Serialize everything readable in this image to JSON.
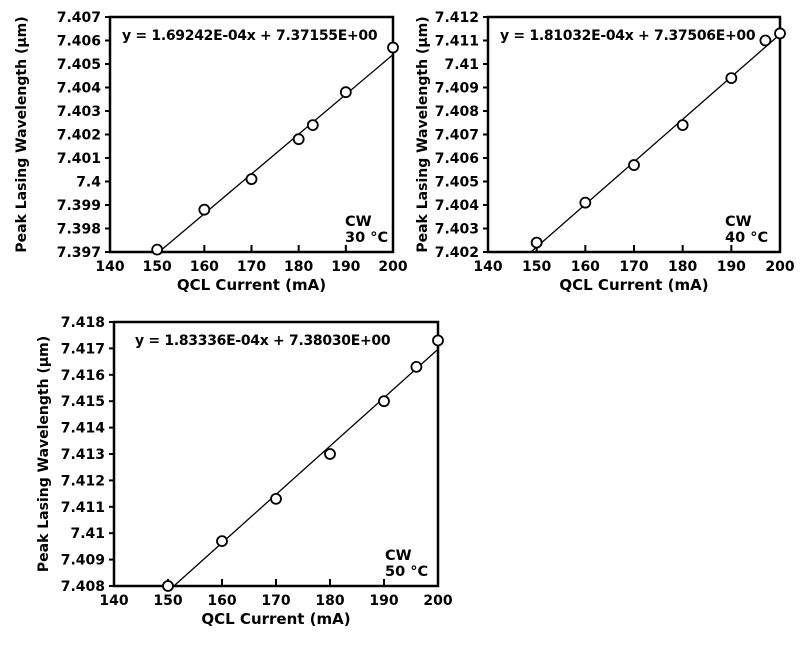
{
  "figure": {
    "description": "QCL peak lasing wavelength tuning vs drive current at three heatsink temperatures",
    "colors": {
      "ink": "#000000",
      "background": "#ffffff",
      "marker_fill": "#ffffff"
    }
  },
  "chart_data": [
    {
      "id": "cw-30c",
      "type": "scatter",
      "equation": "y = 1.69242E-04x  + 7.37155E+00",
      "fit": {
        "slope": 0.000169242,
        "intercept": 7.37155
      },
      "xlabel": "QCL Current (mA)",
      "ylabel": "Peak Lasing Wavelength (µm)",
      "xlim": [
        140,
        200
      ],
      "ylim": [
        7.397,
        7.407
      ],
      "xticks": [
        "140",
        "150",
        "160",
        "170",
        "180",
        "190",
        "200"
      ],
      "yticks": [
        "7.397",
        "7.398",
        "7.399",
        "7.4",
        "7.401",
        "7.402",
        "7.403",
        "7.404",
        "7.405",
        "7.406",
        "7.407"
      ],
      "points": [
        [
          150,
          7.3971
        ],
        [
          160,
          7.3988
        ],
        [
          170,
          7.4001
        ],
        [
          180,
          7.4018
        ],
        [
          183,
          7.4024
        ],
        [
          190,
          7.4038
        ],
        [
          200,
          7.4057
        ]
      ],
      "annotation": [
        "CW",
        "30 °C"
      ],
      "mode": "CW",
      "temperature_c": 30,
      "grid": false,
      "marker": "open-circle"
    },
    {
      "id": "cw-40c",
      "type": "scatter",
      "equation": "y = 1.81032E-04x  + 7.37506E+00",
      "fit": {
        "slope": 0.000181032,
        "intercept": 7.37506
      },
      "xlabel": "QCL Current (mA)",
      "ylabel": "Peak Lasing Wavelength (µm)",
      "xlim": [
        140,
        200
      ],
      "ylim": [
        7.402,
        7.412
      ],
      "xticks": [
        "140",
        "150",
        "160",
        "170",
        "180",
        "190",
        "200"
      ],
      "yticks": [
        "7.402",
        "7.403",
        "7.404",
        "7.405",
        "7.406",
        "7.407",
        "7.408",
        "7.409",
        "7.41",
        "7.411",
        "7.412"
      ],
      "points": [
        [
          150,
          7.4024
        ],
        [
          160,
          7.4041
        ],
        [
          170,
          7.4057
        ],
        [
          180,
          7.4074
        ],
        [
          190,
          7.4094
        ],
        [
          197,
          7.411
        ],
        [
          200,
          7.4113
        ]
      ],
      "annotation": [
        "CW",
        "40 °C"
      ],
      "mode": "CW",
      "temperature_c": 40,
      "grid": false,
      "marker": "open-circle"
    },
    {
      "id": "cw-50c",
      "type": "scatter",
      "equation": "y = 1.83336E-04x  + 7.38030E+00",
      "fit": {
        "slope": 0.000183336,
        "intercept": 7.3803
      },
      "xlabel": "QCL Current (mA)",
      "ylabel": "Peak Lasing Wavelength (µm)",
      "xlim": [
        140,
        200
      ],
      "ylim": [
        7.408,
        7.418
      ],
      "xticks": [
        "140",
        "150",
        "160",
        "170",
        "180",
        "190",
        "200"
      ],
      "yticks": [
        "7.408",
        "7.409",
        "7.41",
        "7.411",
        "7.412",
        "7.413",
        "7.414",
        "7.415",
        "7.416",
        "7.417",
        "7.418"
      ],
      "points": [
        [
          150,
          7.408
        ],
        [
          160,
          7.4097
        ],
        [
          170,
          7.4113
        ],
        [
          180,
          7.413
        ],
        [
          190,
          7.415
        ],
        [
          196,
          7.4163
        ],
        [
          200,
          7.4173
        ]
      ],
      "annotation": [
        "CW",
        "50 °C"
      ],
      "mode": "CW",
      "temperature_c": 50,
      "grid": false,
      "marker": "open-circle"
    }
  ]
}
